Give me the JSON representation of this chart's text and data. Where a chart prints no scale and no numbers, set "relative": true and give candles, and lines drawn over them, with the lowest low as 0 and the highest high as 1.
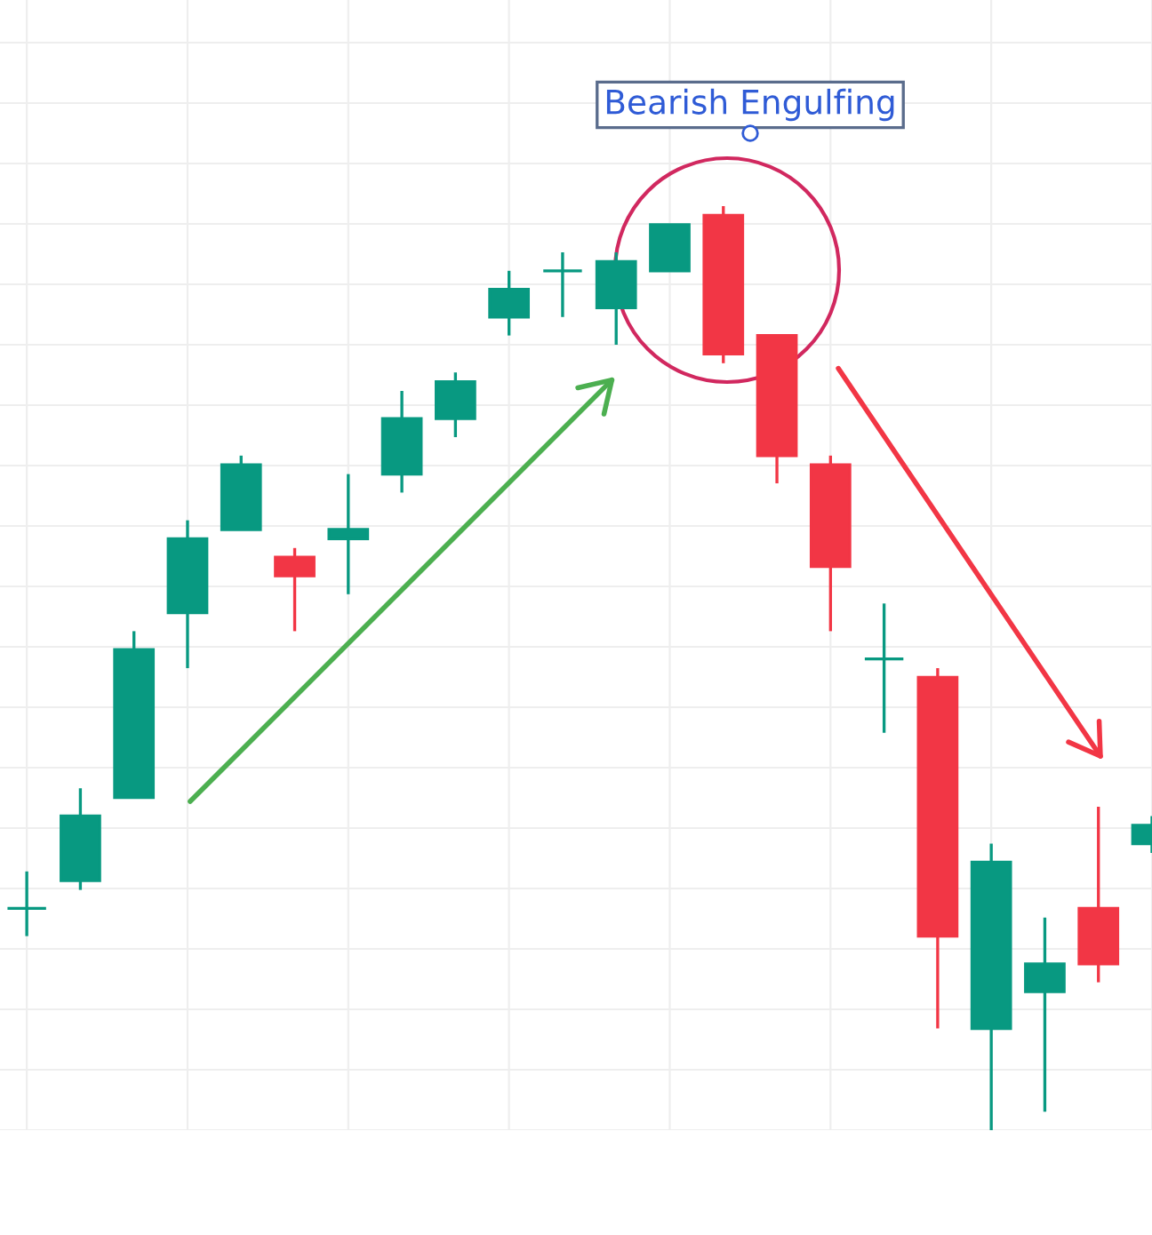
{
  "chart_data": {
    "type": "candlestick",
    "relative": true,
    "grid": true,
    "categories": [
      null,
      null,
      null,
      null,
      null,
      null,
      null,
      null,
      null,
      null,
      null,
      null,
      null,
      null,
      null,
      null,
      null,
      null,
      null,
      null,
      null,
      null
    ],
    "ohlc": [
      [
        0.24,
        0.28,
        0.21,
        0.24
      ],
      [
        0.27,
        0.37,
        0.26,
        0.34
      ],
      [
        0.36,
        0.54,
        0.36,
        0.52
      ],
      [
        0.56,
        0.66,
        0.5,
        0.64
      ],
      [
        0.65,
        0.73,
        0.65,
        0.72
      ],
      [
        0.62,
        0.63,
        0.54,
        0.6
      ],
      [
        0.64,
        0.71,
        0.58,
        0.65
      ],
      [
        0.71,
        0.8,
        0.69,
        0.77
      ],
      [
        0.77,
        0.82,
        0.75,
        0.81
      ],
      [
        0.88,
        0.93,
        0.86,
        0.91
      ],
      [
        0.93,
        0.95,
        0.88,
        0.93
      ],
      [
        0.89,
        0.95,
        0.85,
        0.94
      ],
      [
        0.93,
        0.98,
        0.93,
        0.98
      ],
      [
        0.99,
        1.0,
        0.83,
        0.84
      ],
      [
        0.86,
        0.86,
        0.7,
        0.73
      ],
      [
        0.72,
        0.73,
        0.54,
        0.61
      ],
      [
        0.51,
        0.57,
        0.43,
        0.51
      ],
      [
        0.49,
        0.5,
        0.11,
        0.21
      ],
      [
        0.11,
        0.31,
        0.0,
        0.29
      ],
      [
        0.15,
        0.23,
        0.02,
        0.18
      ],
      [
        0.24,
        0.35,
        0.16,
        0.18
      ],
      [
        0.31,
        0.34,
        0.3,
        0.33
      ]
    ],
    "colors": [
      "#089981",
      "#089981",
      "#089981",
      "#089981",
      "#089981",
      "#f23645",
      "#089981",
      "#089981",
      "#089981",
      "#089981",
      "#089981",
      "#089981",
      "#089981",
      "#f23645",
      "#f23645",
      "#f23645",
      "#089981",
      "#f23645",
      "#089981",
      "#089981",
      "#f23645",
      "#089981"
    ],
    "annotations": [
      "Bearish Engulfing"
    ]
  }
}
